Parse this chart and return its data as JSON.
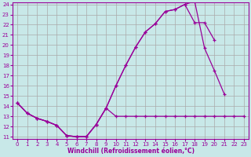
{
  "line1_x": [
    0,
    1,
    2,
    3,
    4,
    5,
    6,
    7,
    8,
    9,
    10,
    11,
    12,
    13,
    14,
    15,
    16,
    17,
    18,
    19,
    20,
    21,
    22,
    23
  ],
  "line1_y": [
    14.3,
    13.3,
    12.8,
    12.5,
    12.1,
    11.1,
    11.0,
    11.0,
    12.2,
    13.8,
    13.0,
    13.0,
    13.0,
    13.0,
    13.0,
    13.0,
    13.0,
    13.0,
    13.0,
    13.0,
    13.0,
    13.0,
    13.0,
    13.0
  ],
  "line2_x": [
    0,
    1,
    2,
    3,
    4,
    5,
    6,
    7,
    8,
    9,
    10,
    11,
    12,
    13,
    14,
    15,
    16,
    17,
    18,
    19,
    20,
    21,
    22,
    23
  ],
  "line2_y": [
    14.3,
    13.3,
    12.8,
    12.5,
    12.1,
    11.1,
    11.0,
    11.0,
    12.2,
    13.8,
    16.0,
    18.0,
    19.8,
    21.3,
    22.1,
    23.3,
    23.5,
    24.0,
    24.3,
    19.7,
    17.5,
    15.2,
    null,
    null
  ],
  "line3_x": [
    0,
    1,
    2,
    3,
    4,
    5,
    6,
    7,
    8,
    9,
    10,
    11,
    12,
    13,
    14,
    15,
    16,
    17,
    18,
    19,
    20,
    21,
    22,
    23
  ],
  "line3_y": [
    14.3,
    13.3,
    12.8,
    12.5,
    12.1,
    11.1,
    11.0,
    11.0,
    12.2,
    13.8,
    16.0,
    18.0,
    19.8,
    21.3,
    22.1,
    23.3,
    23.5,
    24.0,
    22.2,
    22.2,
    20.5,
    null,
    null,
    null
  ],
  "color": "#990099",
  "bg_color": "#c8e8e8",
  "grid_color": "#aaaaaa",
  "xlabel": "Windchill (Refroidissement éolien,°C)",
  "ylim": [
    11,
    24
  ],
  "xlim": [
    0,
    23
  ],
  "yticks": [
    11,
    12,
    13,
    14,
    15,
    16,
    17,
    18,
    19,
    20,
    21,
    22,
    23,
    24
  ],
  "xticks": [
    0,
    1,
    2,
    3,
    4,
    5,
    6,
    7,
    8,
    9,
    10,
    11,
    12,
    13,
    14,
    15,
    16,
    17,
    18,
    19,
    20,
    21,
    22,
    23
  ],
  "figsize": [
    3.2,
    2.0
  ],
  "dpi": 100,
  "linewidth": 0.9,
  "markersize": 3.5,
  "xlabel_fontsize": 5.5,
  "tick_fontsize": 5.0
}
